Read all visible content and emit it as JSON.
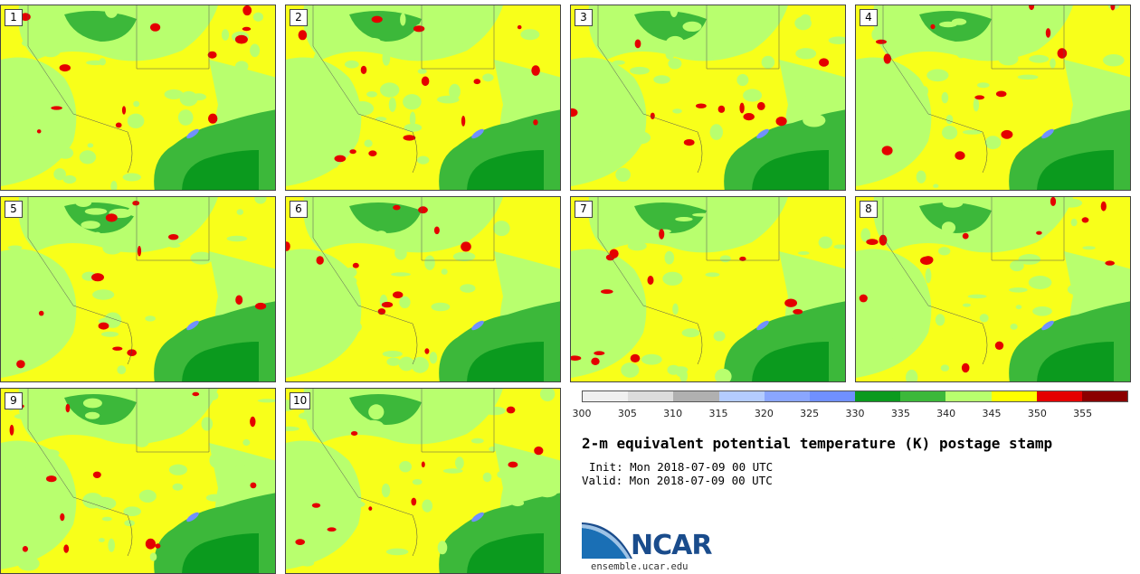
{
  "panels": [
    {
      "label": "1"
    },
    {
      "label": "2"
    },
    {
      "label": "3"
    },
    {
      "label": "4"
    },
    {
      "label": "5"
    },
    {
      "label": "6"
    },
    {
      "label": "7"
    },
    {
      "label": "8"
    },
    {
      "label": "9"
    },
    {
      "label": "10"
    }
  ],
  "colorbar": {
    "ticks": [
      "300",
      "305",
      "310",
      "315",
      "320",
      "325",
      "330",
      "335",
      "340",
      "345",
      "350",
      "355"
    ],
    "colors": [
      "#f0f0f0",
      "#dcdcdc",
      "#b0b0b0",
      "#b4ccff",
      "#8aa6ff",
      "#7090ff",
      "#0b9a1e",
      "#3cb83a",
      "#b8ff6e",
      "#ffff00",
      "#e40000",
      "#8b0000"
    ]
  },
  "title": "2-m equivalent potential temperature (K) postage stamp",
  "init": "Init: Mon 2018-07-09 00 UTC",
  "valid": "Valid: Mon 2018-07-09 00 UTC",
  "logo": {
    "name": "NCAR",
    "url": "ensemble.ucar.edu"
  },
  "map_colors": {
    "yellow": "#f8ff1a",
    "light_green": "#b8ff6e",
    "green": "#3cb83a",
    "dark_green": "#0b9a1e",
    "red": "#e40000",
    "lake": "#7090ff"
  }
}
